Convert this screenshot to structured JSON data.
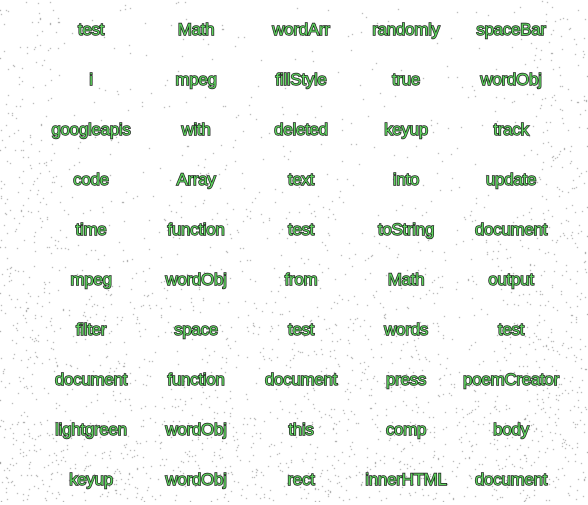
{
  "canvas": {
    "background_color": "#ffffff",
    "noise_color": "#8a8a8a"
  },
  "word_style": {
    "fill_color": "#5fd35f",
    "outline_color": "#1b1b1b"
  },
  "rows": [
    [
      "test",
      "Math",
      "wordArr",
      "randomly",
      "spaceBar"
    ],
    [
      "i",
      "mpeg",
      "fillStyle",
      "true",
      "wordObj"
    ],
    [
      "googleapis",
      "with",
      "deleted",
      "keyup",
      "track"
    ],
    [
      "code",
      "Array",
      "text",
      "into",
      "update"
    ],
    [
      "time",
      "function",
      "test",
      "toString",
      "document"
    ],
    [
      "mpeg",
      "wordObj",
      "from",
      "Math",
      "output"
    ],
    [
      "filter",
      "space",
      "test",
      "words",
      "test"
    ],
    [
      "document",
      "function",
      "document",
      "press",
      "poemCreator"
    ],
    [
      "lightgreen",
      "wordObj",
      "this",
      "comp",
      "body"
    ],
    [
      "keyup",
      "wordObj",
      "rect",
      "innerHTML",
      "document"
    ]
  ]
}
